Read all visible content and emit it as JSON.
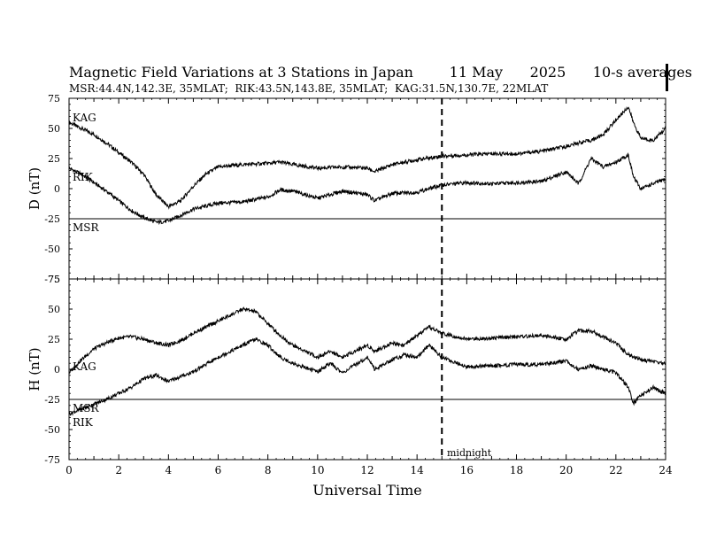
{
  "header": {
    "title": "Magnetic Field Variations at 3 Stations in Japan        11 May      2025      10-s averages",
    "subtitle": "MSR:44.4N,142.3E, 35MLAT;  RIK:43.5N,143.8E, 35MLAT;  KAG:31.5N,130.7E, 22MLAT"
  },
  "chart_data": [
    {
      "type": "line",
      "ylabel": "D (nT)",
      "ylim": [
        -75,
        75
      ],
      "yticks": [
        -75,
        -50,
        -25,
        0,
        25,
        50,
        75
      ],
      "xlim": [
        0,
        24
      ],
      "series": [
        {
          "name": "KAG",
          "x": [
            0,
            0.5,
            1,
            1.5,
            2,
            2.5,
            3,
            3.5,
            4,
            4.5,
            5,
            5.5,
            6,
            7,
            8,
            8.5,
            9,
            10,
            11,
            12,
            12.3,
            13,
            14,
            15,
            16,
            17,
            18,
            19,
            20,
            20.5,
            21,
            21.5,
            22,
            22.5,
            22.7,
            23,
            23.5,
            24
          ],
          "values": [
            55,
            50,
            45,
            38,
            30,
            22,
            12,
            -5,
            -15,
            -10,
            2,
            12,
            18,
            20,
            21,
            22,
            20,
            17,
            18,
            17,
            14,
            20,
            24,
            27,
            28,
            29,
            29,
            31,
            35,
            38,
            40,
            45,
            57,
            68,
            55,
            42,
            40,
            50
          ]
        },
        {
          "name": "RIK",
          "x": [
            0,
            0.5,
            1,
            1.5,
            2,
            2.5,
            3,
            3.5,
            4,
            4.5,
            5,
            6,
            7,
            8,
            8.5,
            9,
            10,
            11,
            12,
            12.3,
            13,
            14,
            15,
            16,
            17,
            18,
            19,
            20,
            20.5,
            21,
            21.5,
            22,
            22.5,
            22.7,
            23,
            23.5,
            24
          ],
          "values": [
            17,
            12,
            5,
            -2,
            -10,
            -18,
            -24,
            -28,
            -27,
            -22,
            -17,
            -12,
            -11,
            -7,
            -1,
            -2,
            -8,
            -2,
            -5,
            -10,
            -4,
            -3,
            3,
            5,
            4,
            5,
            6,
            14,
            4,
            25,
            18,
            22,
            28,
            10,
            0,
            4,
            8
          ]
        },
        {
          "name": "MSR",
          "x": [
            0,
            24
          ],
          "values": [
            -25,
            -25
          ]
        }
      ]
    },
    {
      "type": "line",
      "ylabel": "H (nT)",
      "xlabel": "Universal Time",
      "ylim": [
        -75,
        75
      ],
      "yticks": [
        -75,
        -50,
        -25,
        0,
        25,
        50,
        75
      ],
      "xlim": [
        0,
        24
      ],
      "xticks": [
        0,
        2,
        4,
        6,
        8,
        10,
        12,
        14,
        16,
        18,
        20,
        22,
        24
      ],
      "series": [
        {
          "name": "KAG",
          "x": [
            0,
            0.5,
            1,
            1.5,
            2,
            2.5,
            3,
            3.5,
            4,
            4.5,
            5,
            6,
            7,
            7.5,
            8,
            8.5,
            9,
            10,
            10.5,
            11,
            12,
            12.3,
            13,
            13.5,
            14,
            14.5,
            15,
            16,
            17,
            18,
            19,
            20,
            20.5,
            21,
            22,
            22.5,
            23,
            24
          ],
          "values": [
            -3,
            8,
            17,
            22,
            26,
            27,
            25,
            22,
            20,
            24,
            30,
            40,
            50,
            48,
            38,
            28,
            20,
            10,
            15,
            10,
            20,
            15,
            22,
            20,
            28,
            35,
            30,
            25,
            26,
            27,
            28,
            25,
            32,
            32,
            22,
            12,
            8,
            5
          ]
        },
        {
          "name": "RIK",
          "x": [
            0,
            0.5,
            1,
            1.5,
            2,
            2.5,
            3,
            3.5,
            4,
            4.5,
            5,
            6,
            7,
            7.5,
            8,
            8.5,
            9,
            10,
            10.5,
            11,
            12,
            12.3,
            13,
            13.5,
            14,
            14.5,
            15,
            16,
            17,
            18,
            19,
            20,
            20.5,
            21,
            22,
            22.5,
            22.7,
            23,
            23.5,
            24
          ],
          "values": [
            -37,
            -33,
            -29,
            -25,
            -20,
            -15,
            -8,
            -5,
            -10,
            -6,
            -2,
            10,
            20,
            25,
            20,
            10,
            5,
            -2,
            5,
            -3,
            10,
            0,
            8,
            12,
            10,
            20,
            10,
            2,
            3,
            4,
            4,
            7,
            0,
            3,
            -3,
            -15,
            -28,
            -22,
            -15,
            -20
          ]
        },
        {
          "name": "MSR",
          "x": [
            0,
            24
          ],
          "values": [
            -25,
            -25
          ]
        }
      ]
    }
  ],
  "labels": {
    "top_kag": "KAG",
    "top_rik": "RIK",
    "top_msr": "MSR",
    "bot_kag": "KAG",
    "bot_msr": "MSR",
    "bot_rik": "RIK",
    "midnight": "midnight",
    "midnight_ut": 15
  }
}
